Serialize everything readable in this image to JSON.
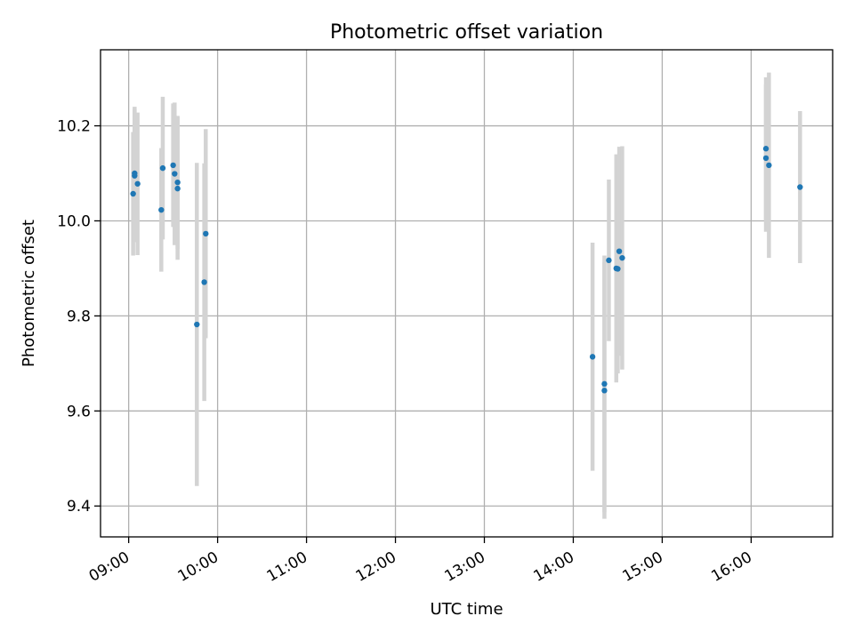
{
  "chart_data": {
    "type": "scatter",
    "title": "Photometric offset variation",
    "xlabel": "UTC time",
    "ylabel": "Photometric offset",
    "xlim": [
      "08:41",
      "16:55"
    ],
    "ylim": [
      9.335,
      10.36
    ],
    "x_ticks": [
      "09:00",
      "10:00",
      "11:00",
      "12:00",
      "13:00",
      "14:00",
      "15:00",
      "16:00"
    ],
    "y_ticks": [
      9.4,
      9.6,
      9.8,
      10.0,
      10.2
    ],
    "y_tick_labels": [
      "9.4",
      "9.6",
      "9.8",
      "10.0",
      "10.2"
    ],
    "grid": true,
    "marker_color": "#1f77b4",
    "errorbar_color": "#d3d3d3",
    "points": [
      {
        "x": "09:03",
        "y": 10.057,
        "yerr": 0.13
      },
      {
        "x": "09:04",
        "y": 10.1,
        "yerr": 0.14
      },
      {
        "x": "09:04",
        "y": 10.095,
        "yerr": 0.14
      },
      {
        "x": "09:06",
        "y": 10.078,
        "yerr": 0.15
      },
      {
        "x": "09:22",
        "y": 10.023,
        "yerr": 0.13
      },
      {
        "x": "09:23",
        "y": 10.111,
        "yerr": 0.15
      },
      {
        "x": "09:30",
        "y": 10.117,
        "yerr": 0.13
      },
      {
        "x": "09:31",
        "y": 10.099,
        "yerr": 0.15
      },
      {
        "x": "09:33",
        "y": 10.081,
        "yerr": 0.14
      },
      {
        "x": "09:33",
        "y": 10.068,
        "yerr": 0.15
      },
      {
        "x": "09:46",
        "y": 9.782,
        "yerr": 0.34
      },
      {
        "x": "09:51",
        "y": 9.871,
        "yerr": 0.25
      },
      {
        "x": "09:52",
        "y": 9.973,
        "yerr": 0.22
      },
      {
        "x": "14:13",
        "y": 9.714,
        "yerr": 0.24
      },
      {
        "x": "14:21",
        "y": 9.657,
        "yerr": 0.27
      },
      {
        "x": "14:21",
        "y": 9.643,
        "yerr": 0.27
      },
      {
        "x": "14:24",
        "y": 9.917,
        "yerr": 0.17
      },
      {
        "x": "14:29",
        "y": 9.9,
        "yerr": 0.24
      },
      {
        "x": "14:30",
        "y": 9.899,
        "yerr": 0.22
      },
      {
        "x": "14:31",
        "y": 9.936,
        "yerr": 0.22
      },
      {
        "x": "14:33",
        "y": 9.922,
        "yerr": 0.235
      },
      {
        "x": "16:10",
        "y": 10.152,
        "yerr": 0.15
      },
      {
        "x": "16:10",
        "y": 10.132,
        "yerr": 0.155
      },
      {
        "x": "16:12",
        "y": 10.117,
        "yerr": 0.195
      },
      {
        "x": "16:33",
        "y": 10.071,
        "yerr": 0.16
      }
    ]
  }
}
